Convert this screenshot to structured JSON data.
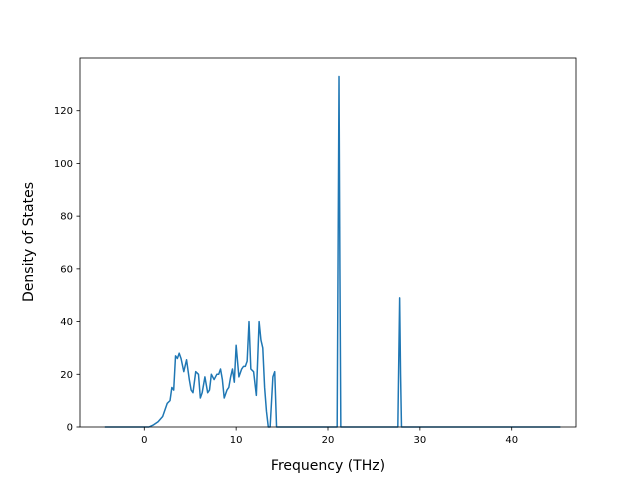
{
  "chart_data": {
    "type": "line",
    "title": "",
    "xlabel": "Frequency (THz)",
    "ylabel": "Density of States",
    "xlim": [
      -7,
      47
    ],
    "ylim": [
      0,
      140
    ],
    "xticks": [
      0,
      10,
      20,
      30,
      40
    ],
    "yticks": [
      0,
      20,
      40,
      60,
      80,
      100,
      120
    ],
    "grid": false,
    "legend": "none",
    "line_color": "#1f77b4",
    "series": [
      {
        "x": [
          -4.3,
          0.5,
          1.0,
          1.5,
          2.0,
          2.5,
          2.8,
          3.0,
          3.2,
          3.4,
          3.6,
          3.8,
          4.0,
          4.3,
          4.6,
          4.9,
          5.1,
          5.3,
          5.6,
          5.9,
          6.1,
          6.3,
          6.6,
          6.9,
          7.1,
          7.3,
          7.6,
          7.9,
          8.1,
          8.3,
          8.5,
          8.7,
          9.0,
          9.2,
          9.4,
          9.6,
          9.8,
          10.0,
          10.3,
          10.6,
          10.8,
          11.0,
          11.2,
          11.4,
          11.6,
          11.9,
          12.2,
          12.5,
          12.7,
          12.9,
          13.1,
          13.3,
          13.5,
          13.7,
          14.0,
          14.2,
          14.4,
          14.6,
          14.8,
          15.0,
          15.2,
          15.4,
          15.6,
          15.8,
          21.0,
          21.2,
          21.3,
          21.4,
          21.6,
          27.6,
          27.8,
          27.9,
          28.0,
          28.2,
          45.3
        ],
        "y": [
          0,
          0,
          0.8,
          2,
          4,
          9,
          10,
          15,
          14,
          27,
          26,
          28,
          26,
          21,
          25.5,
          18,
          14,
          13,
          21,
          20,
          11,
          13,
          19,
          13,
          14,
          20,
          18,
          20,
          20,
          22,
          18,
          11,
          14,
          15,
          19,
          22,
          17,
          31,
          19,
          22,
          23,
          23,
          25,
          40,
          22,
          21,
          12,
          40,
          33,
          30,
          15,
          6,
          0,
          0,
          19,
          21,
          0,
          0,
          0,
          0,
          0,
          0,
          0,
          0,
          0,
          133,
          60,
          0,
          0,
          0,
          49,
          20,
          0,
          0,
          0
        ]
      }
    ]
  }
}
